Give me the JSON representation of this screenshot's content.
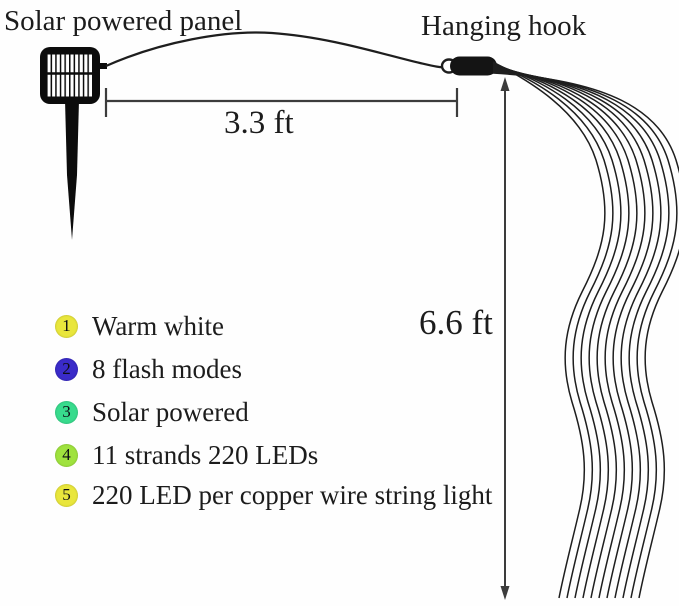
{
  "labels": {
    "solar_panel": "Solar powered panel",
    "hanging_hook": "Hanging hook",
    "width_measure": "3.3 ft",
    "height_measure": "6.6 ft"
  },
  "features": [
    {
      "num": "1",
      "text": "Warm white",
      "color": "#e9e63c"
    },
    {
      "num": "2",
      "text": "8 flash modes",
      "color": "#3a2bc9"
    },
    {
      "num": "3",
      "text": "Solar powered",
      "color": "#38db8d"
    },
    {
      "num": "4",
      "text": "11 strands 220 LEDs",
      "color": "#9fe23e"
    },
    {
      "num": "5",
      "text": "220 LED per copper wire string light",
      "color": "#e9e63c"
    }
  ],
  "diagram": {
    "strand_count": 11,
    "line_color": "#1e1e1e"
  }
}
